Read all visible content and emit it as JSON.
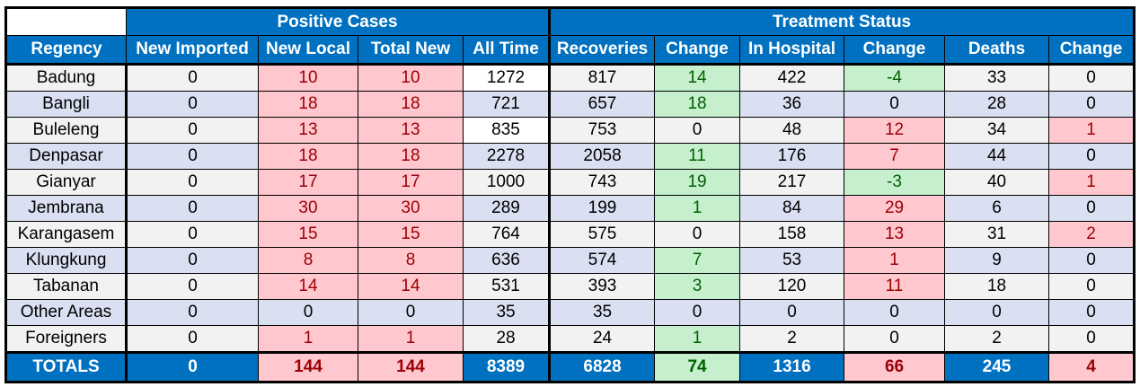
{
  "group_headers": {
    "positive": "Positive Cases",
    "treatment": "Treatment Status"
  },
  "columns": [
    "Regency",
    "New Imported",
    "New Local",
    "Total New",
    "All Time",
    "Recoveries",
    "Change",
    "In Hospital",
    "Change",
    "Deaths",
    "Change"
  ],
  "rows": [
    {
      "cells": [
        "Badung",
        "0",
        "10",
        "10",
        "1272",
        "817",
        "14",
        "422",
        "-4",
        "33",
        "0"
      ],
      "styles": [
        "",
        "",
        "red",
        "red",
        "white",
        "",
        "green",
        "",
        "green",
        "",
        ""
      ]
    },
    {
      "cells": [
        "Bangli",
        "0",
        "18",
        "18",
        "721",
        "657",
        "18",
        "36",
        "0",
        "28",
        "0"
      ],
      "styles": [
        "",
        "",
        "red",
        "red",
        "",
        "",
        "green",
        "",
        "",
        "",
        ""
      ]
    },
    {
      "cells": [
        "Buleleng",
        "0",
        "13",
        "13",
        "835",
        "753",
        "0",
        "48",
        "12",
        "34",
        "1"
      ],
      "styles": [
        "",
        "",
        "red",
        "red",
        "white",
        "",
        "",
        "",
        "red",
        "",
        "red"
      ]
    },
    {
      "cells": [
        "Denpasar",
        "0",
        "18",
        "18",
        "2278",
        "2058",
        "11",
        "176",
        "7",
        "44",
        "0"
      ],
      "styles": [
        "",
        "",
        "red",
        "red",
        "",
        "",
        "green",
        "",
        "red",
        "",
        ""
      ]
    },
    {
      "cells": [
        "Gianyar",
        "0",
        "17",
        "17",
        "1000",
        "743",
        "19",
        "217",
        "-3",
        "40",
        "1"
      ],
      "styles": [
        "",
        "",
        "red",
        "red",
        "",
        "",
        "green",
        "",
        "green",
        "",
        "red"
      ]
    },
    {
      "cells": [
        "Jembrana",
        "0",
        "30",
        "30",
        "289",
        "199",
        "1",
        "84",
        "29",
        "6",
        "0"
      ],
      "styles": [
        "",
        "",
        "red",
        "red",
        "",
        "",
        "green",
        "",
        "red",
        "",
        ""
      ]
    },
    {
      "cells": [
        "Karangasem",
        "0",
        "15",
        "15",
        "764",
        "575",
        "0",
        "158",
        "13",
        "31",
        "2"
      ],
      "styles": [
        "",
        "",
        "red",
        "red",
        "",
        "",
        "",
        "",
        "red",
        "",
        "red"
      ]
    },
    {
      "cells": [
        "Klungkung",
        "0",
        "8",
        "8",
        "636",
        "574",
        "7",
        "53",
        "1",
        "9",
        "0"
      ],
      "styles": [
        "",
        "",
        "red",
        "red",
        "",
        "",
        "green",
        "",
        "red",
        "",
        ""
      ]
    },
    {
      "cells": [
        "Tabanan",
        "0",
        "14",
        "14",
        "531",
        "393",
        "3",
        "120",
        "11",
        "18",
        "0"
      ],
      "styles": [
        "",
        "",
        "red",
        "red",
        "",
        "",
        "green",
        "",
        "red",
        "",
        ""
      ]
    },
    {
      "cells": [
        "Other Areas",
        "0",
        "0",
        "0",
        "35",
        "35",
        "0",
        "0",
        "0",
        "0",
        "0"
      ],
      "styles": [
        "",
        "",
        "",
        "",
        "",
        "",
        "",
        "",
        "",
        "",
        ""
      ]
    },
    {
      "cells": [
        "Foreigners",
        "0",
        "1",
        "1",
        "28",
        "24",
        "1",
        "2",
        "0",
        "2",
        "0"
      ],
      "styles": [
        "",
        "",
        "red",
        "red",
        "",
        "",
        "green",
        "",
        "",
        "",
        ""
      ]
    }
  ],
  "totals": {
    "cells": [
      "TOTALS",
      "0",
      "144",
      "144",
      "8389",
      "6828",
      "74",
      "1316",
      "66",
      "245",
      "4"
    ],
    "styles": [
      "",
      "",
      "red",
      "red",
      "",
      "",
      "green",
      "",
      "red",
      "",
      "red"
    ]
  }
}
